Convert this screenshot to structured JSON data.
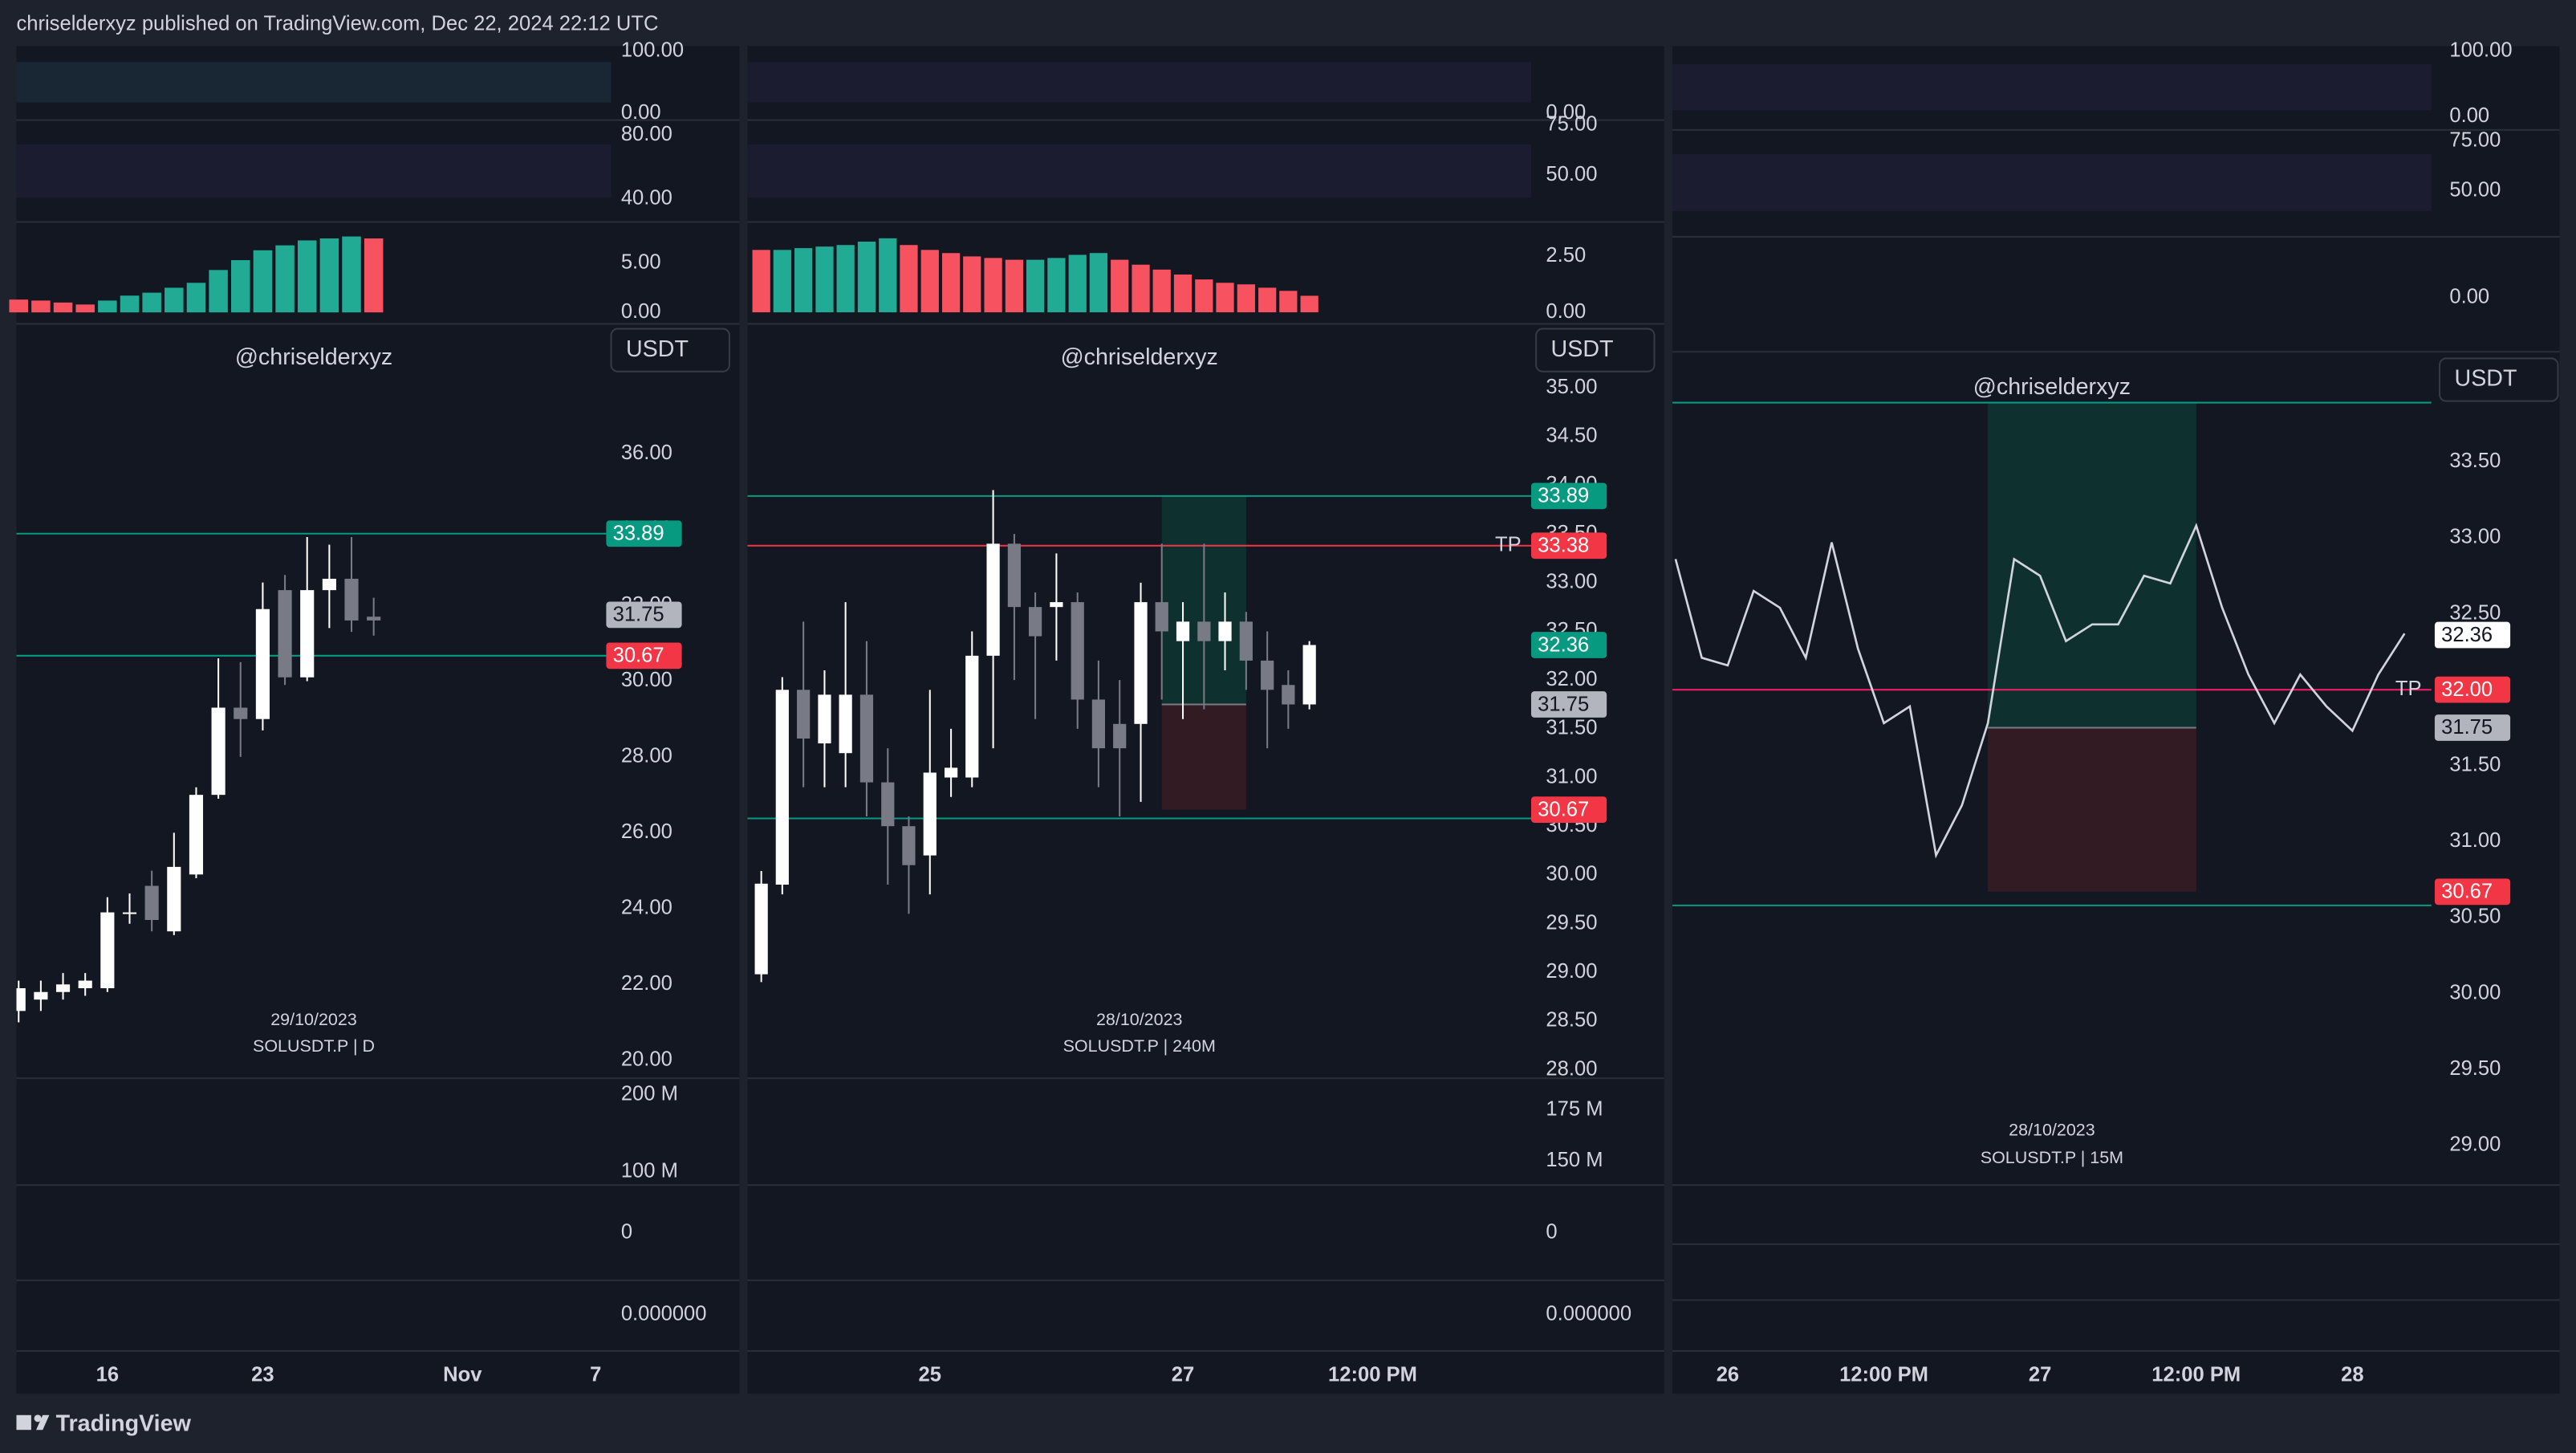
{
  "header": "chriselderxyz published on TradingView.com, Dec 22, 2024 22:12 UTC",
  "footer": "TradingView",
  "chart_data": [
    {
      "type": "candlestick",
      "watermark": "@chriselderxyz",
      "currency": "USDT",
      "date_label": "29/10/2023",
      "symbol_label": "SOLUSDT.P | D",
      "up_color": "#ffffff",
      "down_color": "#787b86",
      "x": [
        12,
        13,
        14,
        15,
        16,
        17,
        18,
        19,
        20,
        21,
        22,
        23,
        24,
        25,
        26,
        27,
        28
      ],
      "open": [
        21.3,
        21.6,
        21.8,
        21.9,
        21.9,
        23.9,
        24.6,
        23.4,
        24.9,
        27.0,
        29.3,
        29.0,
        32.4,
        30.1,
        32.4,
        32.7,
        31.7
      ],
      "close": [
        21.9,
        21.8,
        22.0,
        22.1,
        23.9,
        23.9,
        23.7,
        25.1,
        27.0,
        29.3,
        29.0,
        31.9,
        30.1,
        32.4,
        32.7,
        31.6,
        31.6
      ],
      "high": [
        22.1,
        22.1,
        22.3,
        22.3,
        24.3,
        24.4,
        25.0,
        26.0,
        27.2,
        30.6,
        30.5,
        32.6,
        32.8,
        33.8,
        33.6,
        33.8,
        32.2
      ],
      "low": [
        21.0,
        21.3,
        21.6,
        21.7,
        21.8,
        23.6,
        23.4,
        23.3,
        24.8,
        26.9,
        28.0,
        28.7,
        29.9,
        30.0,
        31.4,
        31.3,
        31.2
      ],
      "xlim": [
        11.9,
        38.7
      ],
      "ylim": [
        19.57,
        39.38
      ],
      "xticks": [
        16,
        23,
        {
          "value": 32,
          "label": "Nov"
        },
        {
          "value": 38,
          "label": "7"
        }
      ],
      "yticks": [
        {
          "value": 20,
          "label": "20.00"
        },
        {
          "value": 22,
          "label": "22.00"
        },
        {
          "value": 24,
          "label": "24.00"
        },
        {
          "value": 26,
          "label": "26.00"
        },
        {
          "value": 28,
          "label": "28.00"
        },
        {
          "value": 30,
          "label": "30.00"
        },
        {
          "value": 32,
          "label": "32.00"
        },
        {
          "value": 34,
          "label": "34.00"
        },
        {
          "value": 36,
          "label": "36.00"
        }
      ],
      "price_lines": [
        {
          "value": 33.89,
          "color": "#089981"
        },
        {
          "value": 30.67,
          "color": "#089981"
        }
      ],
      "badges": [
        {
          "value": 33.89,
          "color": "#089981"
        },
        {
          "value": 31.75,
          "color": "#b2b5be"
        },
        {
          "value": 30.67,
          "color": "#f23645"
        }
      ],
      "panes": [
        {
          "kind": "oscillator",
          "ylim": [
            -7.9,
            107.9
          ],
          "yticks": [
            {
              "value": 100,
              "label": "100.00"
            },
            {
              "value": 0,
              "label": "0.00"
            }
          ]
        },
        {
          "kind": "oscillator",
          "ylim": [
            27.7,
            87.2
          ],
          "yticks": [
            {
              "value": 80,
              "label": "80.00"
            },
            {
              "value": 40,
              "label": "40.00"
            }
          ]
        },
        {
          "kind": "histogram",
          "ylim": [
            -0.83,
            8.67
          ],
          "yticks": [
            {
              "value": 5,
              "label": "5.00"
            },
            {
              "value": 0,
              "label": "0.00"
            }
          ],
          "up_color": "#22ab94",
          "down_color": "#f7525f",
          "values": [
            1.3,
            1.2,
            1.0,
            0.8,
            1.2,
            1.7,
            2.0,
            2.5,
            3.0,
            4.3,
            5.3,
            6.3,
            6.8,
            7.3,
            7.5,
            7.7,
            7.5
          ]
        },
        {
          "kind": "volume",
          "ylim": [
            85000000,
            217000000
          ],
          "yticks": [
            {
              "value": 200000000,
              "label": "200 M"
            },
            {
              "value": 100000000,
              "label": "100 M"
            }
          ]
        },
        {
          "kind": "empty",
          "ylim": [
            -1,
            1
          ],
          "yticks": [
            0
          ]
        },
        {
          "kind": "empty",
          "ylim": [
            -1,
            1
          ],
          "yticks": [
            {
              "value": 0,
              "label": "0.000000"
            }
          ]
        }
      ]
    },
    {
      "type": "candlestick",
      "watermark": "@chriselderxyz",
      "currency": "USDT",
      "date_label": "28/10/2023",
      "symbol_label": "SOLUSDT.P | 240M",
      "up_color": "#ffffff",
      "down_color": "#787b86",
      "x": [
        23.667,
        23.833,
        24,
        24.167,
        24.333,
        24.5,
        24.667,
        24.833,
        25,
        25.167,
        25.333,
        25.5,
        25.667,
        25.833,
        26,
        26.167,
        26.333,
        26.5,
        26.667,
        26.833,
        27,
        27.167,
        27.333,
        27.5,
        27.667,
        27.833,
        28
      ],
      "open": [
        28.98,
        29.9,
        31.9,
        31.35,
        31.25,
        31.85,
        30.95,
        30.5,
        30.2,
        31.0,
        31.0,
        32.25,
        33.4,
        32.75,
        32.75,
        32.8,
        31.8,
        31.55,
        31.55,
        32.8,
        32.4,
        32.6,
        32.4,
        32.6,
        32.2,
        31.95,
        31.75
      ],
      "close": [
        29.91,
        31.9,
        31.4,
        31.85,
        31.85,
        30.95,
        30.5,
        30.1,
        31.05,
        31.1,
        32.25,
        33.4,
        32.75,
        32.45,
        32.8,
        31.8,
        31.3,
        31.3,
        32.8,
        32.5,
        32.6,
        32.4,
        32.6,
        32.2,
        31.9,
        31.75,
        32.36
      ],
      "high": [
        30.04,
        32.03,
        32.6,
        32.1,
        32.8,
        32.4,
        31.3,
        30.6,
        31.9,
        31.5,
        32.5,
        33.95,
        33.5,
        32.9,
        33.3,
        32.9,
        32.2,
        32.0,
        33.0,
        33.4,
        32.8,
        33.4,
        32.9,
        32.7,
        32.5,
        32.1,
        32.4
      ],
      "low": [
        28.9,
        29.8,
        30.9,
        30.9,
        30.9,
        30.6,
        29.9,
        29.6,
        29.8,
        30.8,
        30.9,
        31.3,
        32.0,
        31.6,
        32.2,
        31.5,
        30.9,
        30.6,
        30.75,
        31.8,
        31.6,
        31.7,
        32.1,
        31.9,
        31.3,
        31.5,
        31.7
      ],
      "xlim": [
        23.558,
        29.753
      ],
      "ylim": [
        27.93,
        35.64
      ],
      "xticks": [
        25,
        27,
        {
          "value": 28.5,
          "label": "12:00 PM"
        }
      ],
      "yticks": [
        {
          "value": 28,
          "label": "28.00"
        },
        {
          "value": 28.5,
          "label": "28.50"
        },
        {
          "value": 29,
          "label": "29.00"
        },
        {
          "value": 29.5,
          "label": "29.50"
        },
        {
          "value": 30,
          "label": "30.00"
        },
        {
          "value": 30.5,
          "label": "30.50"
        },
        {
          "value": 31,
          "label": "31.00"
        },
        {
          "value": 31.5,
          "label": "31.50"
        },
        {
          "value": 32,
          "label": "32.00"
        },
        {
          "value": 32.5,
          "label": "32.50"
        },
        {
          "value": 33,
          "label": "33.00"
        },
        {
          "value": 33.5,
          "label": "33.50"
        },
        {
          "value": 34,
          "label": "34.00"
        },
        {
          "value": 34.5,
          "label": "34.50"
        },
        {
          "value": 35,
          "label": "35.00"
        }
      ],
      "price_lines": [
        {
          "value": 33.89,
          "color": "#089981"
        },
        {
          "value": 33.38,
          "color": "#f23645"
        },
        {
          "value": 30.58,
          "color": "#089981"
        }
      ],
      "badges": [
        {
          "value": 33.89,
          "color": "#089981"
        },
        {
          "value": 33.38,
          "color": "#f23645"
        },
        {
          "value": 32.36,
          "color": "#089981"
        },
        {
          "value": 31.75,
          "color": "#b2b5be"
        },
        {
          "value": 30.67,
          "color": "#f23645"
        }
      ],
      "annotations": [
        {
          "text": "TP",
          "value": 33.38
        }
      ],
      "position": {
        "x": [
          26.833,
          27.5
        ],
        "entry": 31.75,
        "target": 33.89,
        "stop": 30.67
      },
      "panes": [
        {
          "kind": "oscillator",
          "ylim": [
            -7.9,
            107.9
          ],
          "yticks": [
            {
              "value": 0,
              "label": "0.00"
            }
          ]
        },
        {
          "kind": "oscillator",
          "ylim": [
            28.2,
            75.8
          ],
          "yticks": [
            {
              "value": 75,
              "label": "75.00"
            },
            {
              "value": 50,
              "label": "50.00"
            }
          ]
        },
        {
          "kind": "histogram",
          "ylim": [
            -0.37,
            3.82
          ],
          "yticks": [
            {
              "value": 2.5,
              "label": "2.50"
            },
            {
              "value": 0,
              "label": "0.00"
            }
          ],
          "up_color": "#22ab94",
          "down_color": "#f7525f",
          "values": [
            2.79,
            2.79,
            2.87,
            2.94,
            3.01,
            3.16,
            3.31,
            3.01,
            2.79,
            2.65,
            2.5,
            2.43,
            2.35,
            2.35,
            2.43,
            2.57,
            2.65,
            2.35,
            2.13,
            1.91,
            1.69,
            1.47,
            1.32,
            1.25,
            1.1,
            0.96,
            0.74
          ]
        },
        {
          "kind": "volume",
          "ylim": [
            139000000,
            189000000
          ],
          "yticks": [
            {
              "value": 175000000,
              "label": "175 M"
            },
            {
              "value": 150000000,
              "label": "150 M"
            }
          ]
        },
        {
          "kind": "empty",
          "ylim": [
            -1,
            1
          ],
          "yticks": [
            0
          ]
        },
        {
          "kind": "empty",
          "ylim": [
            -1,
            1
          ],
          "yticks": [
            {
              "value": 0,
              "label": "0.000000"
            }
          ]
        }
      ]
    },
    {
      "type": "line",
      "watermark": "@chriselderxyz",
      "currency": "USDT",
      "date_label": "28/10/2023",
      "symbol_label": "SOLUSDT.P | 15M",
      "color": "#d1d4dc",
      "x": [
        25.833,
        25.917,
        26,
        26.083,
        26.167,
        26.25,
        26.333,
        26.417,
        26.5,
        26.583,
        26.667,
        26.75,
        26.833,
        26.917,
        27,
        27.083,
        27.167,
        27.25,
        27.333,
        27.417,
        27.5,
        27.583,
        27.667,
        27.75,
        27.833,
        27.917,
        28,
        28.083,
        28.167
      ],
      "values": [
        32.86,
        32.21,
        32.16,
        32.65,
        32.54,
        32.21,
        32.97,
        32.27,
        31.78,
        31.89,
        30.91,
        31.24,
        31.78,
        32.86,
        32.75,
        32.32,
        32.43,
        32.43,
        32.75,
        32.7,
        33.08,
        32.54,
        32.1,
        31.78,
        32.1,
        31.89,
        31.73,
        32.1,
        32.37
      ],
      "xlim": [
        25.823,
        28.253
      ],
      "ylim": [
        28.75,
        34.203
      ],
      "xticks": [
        26,
        {
          "value": 26.5,
          "label": "12:00 PM"
        },
        27,
        {
          "value": 27.5,
          "label": "12:00 PM"
        },
        28
      ],
      "yticks": [
        {
          "value": 29,
          "label": "29.00"
        },
        {
          "value": 29.5,
          "label": "29.50"
        },
        {
          "value": 30,
          "label": "30.00"
        },
        {
          "value": 30.5,
          "label": "30.50"
        },
        {
          "value": 31,
          "label": "31.00"
        },
        {
          "value": 31.5,
          "label": "31.50"
        },
        {
          "value": 32,
          "label": "32.00"
        },
        {
          "value": 32.5,
          "label": "32.50"
        },
        {
          "value": 33,
          "label": "33.00"
        },
        {
          "value": 33.5,
          "label": "33.50"
        }
      ],
      "price_lines": [
        {
          "value": 33.89,
          "color": "#089981"
        },
        {
          "value": 32,
          "color": "#e91e63"
        },
        {
          "value": 30.58,
          "color": "#089981"
        }
      ],
      "badges": [
        {
          "value": 32.36,
          "color": "#ffffff"
        },
        {
          "value": 32,
          "label": "32.00",
          "color": "#f23645"
        },
        {
          "value": 31.75,
          "color": "#b2b5be"
        },
        {
          "value": 30.67,
          "color": "#f23645"
        }
      ],
      "annotations": [
        {
          "text": "TP",
          "value": 32
        }
      ],
      "position": {
        "x": [
          26.833,
          27.5
        ],
        "entry": 31.75,
        "target": 33.89,
        "stop": 30.67
      },
      "panes": [
        {
          "kind": "oscillator",
          "ylim": [
            -17.5,
            107.5
          ],
          "yticks": [
            {
              "value": 100,
              "label": "100.00"
            },
            {
              "value": 0,
              "label": "0.00"
            }
          ]
        },
        {
          "kind": "oscillator",
          "ylim": [
            28.6,
            79.8
          ],
          "yticks": [
            {
              "value": 75,
              "label": "75.00"
            },
            {
              "value": 50,
              "label": "50.00"
            }
          ]
        },
        {
          "kind": "histogram",
          "ylim": [
            -1,
            1
          ],
          "yticks": [
            {
              "value": 0,
              "label": "0.00"
            }
          ]
        }
      ]
    }
  ]
}
